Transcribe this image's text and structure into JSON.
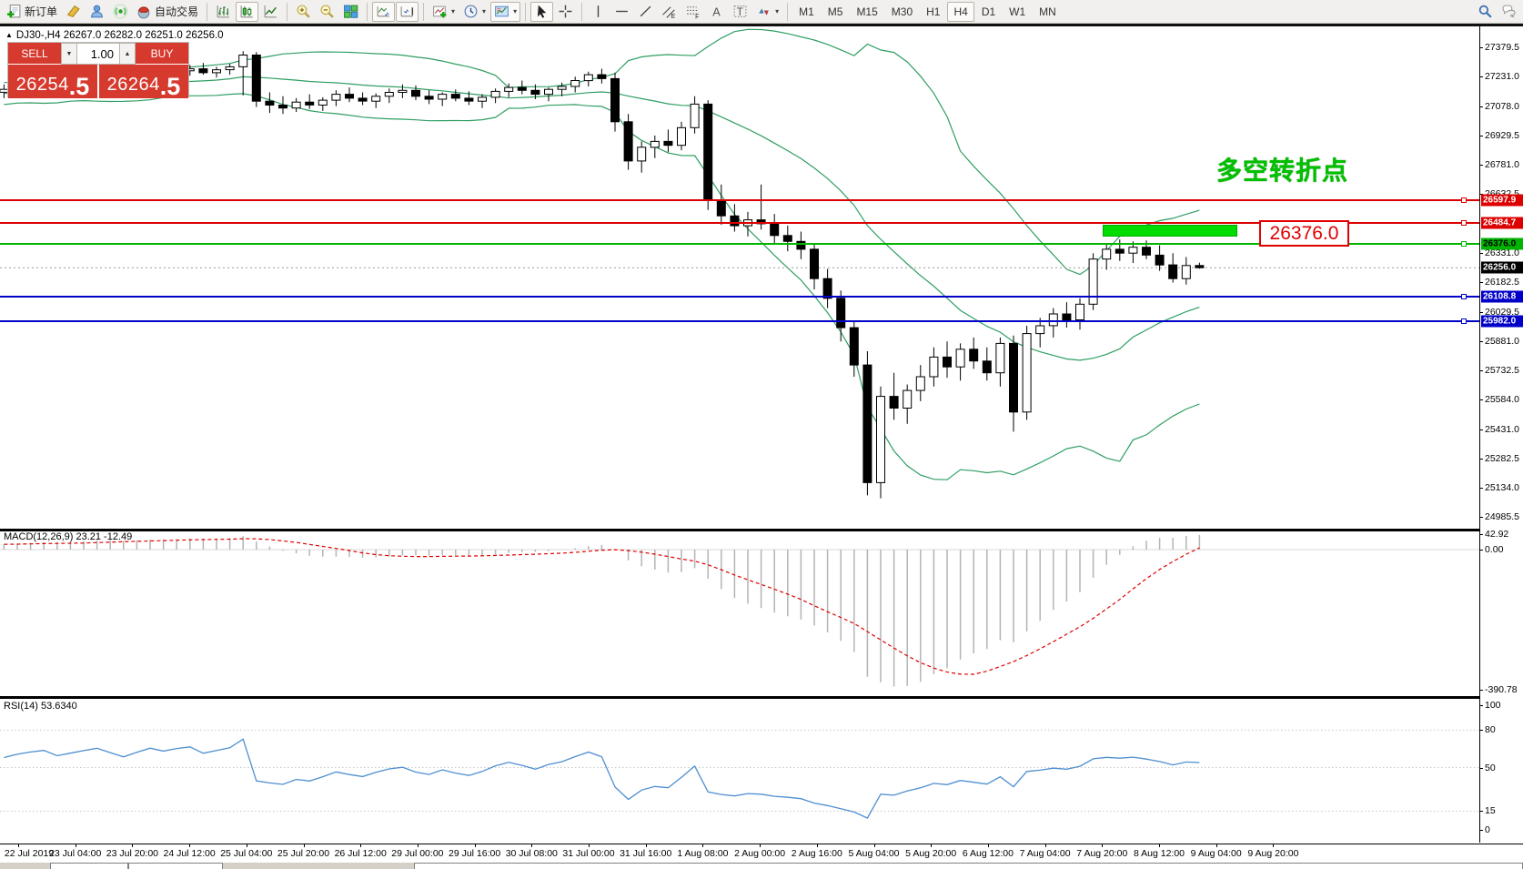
{
  "toolbar": {
    "new_order_label": "新订单",
    "autotrading_label": "自动交易",
    "timeframes": [
      "M1",
      "M5",
      "M15",
      "M30",
      "H1",
      "H4",
      "D1",
      "W1",
      "MN"
    ],
    "active_timeframe": "H4"
  },
  "symbol_bar": {
    "collapse": "▲",
    "text": "DJ30-,H4  26267.0 26282.0 26251.0 26256.0"
  },
  "trade_panel": {
    "sell_label": "SELL",
    "buy_label": "BUY",
    "volume": "1.00",
    "volume_down": "▼",
    "volume_up": "▲",
    "sell_price_main": "26254",
    "sell_price_frac": ".5",
    "buy_price_main": "26264",
    "buy_price_frac": ".5"
  },
  "annotations": {
    "turning_point_text": "多空转折点",
    "price_callout": "26376.0"
  },
  "hlines": [
    {
      "price": 26597.9,
      "label": "26597.9",
      "color": "#dd0000",
      "text_color": "#ffffff"
    },
    {
      "price": 26484.7,
      "label": "26484.7",
      "color": "#dd0000",
      "text_color": "#ffffff"
    },
    {
      "price": 26376.0,
      "label": "26376.0",
      "color": "#00b400",
      "text_color": "#000000"
    },
    {
      "price": 26108.8,
      "label": "26108.8",
      "color": "#0000c8",
      "text_color": "#ffffff"
    },
    {
      "price": 25982.0,
      "label": "25982.0",
      "color": "#0000c8",
      "text_color": "#ffffff"
    }
  ],
  "current_price": {
    "price": 26256.0,
    "label": "26256.0"
  },
  "price_axis_ticks": [
    {
      "price": 27379.5,
      "label": "27379.5"
    },
    {
      "price": 27231.0,
      "label": "27231.0"
    },
    {
      "price": 27078.0,
      "label": "27078.0"
    },
    {
      "price": 26929.5,
      "label": "26929.5"
    },
    {
      "price": 26781.0,
      "label": "26781.0"
    },
    {
      "price": 26632.5,
      "label": "26632.5"
    },
    {
      "price": 26331.0,
      "label": "26331.0"
    },
    {
      "price": 26182.5,
      "label": "26182.5"
    },
    {
      "price": 26029.5,
      "label": "26029.5"
    },
    {
      "price": 25881.0,
      "label": "25881.0"
    },
    {
      "price": 25732.5,
      "label": "25732.5"
    },
    {
      "price": 25584.0,
      "label": "25584.0"
    },
    {
      "price": 25431.0,
      "label": "25431.0"
    },
    {
      "price": 25282.5,
      "label": "25282.5"
    },
    {
      "price": 25134.0,
      "label": "25134.0"
    },
    {
      "price": 24985.5,
      "label": "24985.5"
    }
  ],
  "time_axis": {
    "labels": [
      "22 Jul 2019",
      "23 Jul 04:00",
      "23 Jul 20:00",
      "24 Jul 12:00",
      "25 Jul 04:00",
      "25 Jul 20:00",
      "26 Jul 12:00",
      "29 Jul 00:00",
      "29 Jul 16:00",
      "30 Jul 08:00",
      "31 Jul 00:00",
      "31 Jul 16:00",
      "1 Aug 08:00",
      "2 Aug 00:00",
      "2 Aug 16:00",
      "5 Aug 04:00",
      "5 Aug 20:00",
      "6 Aug 12:00",
      "7 Aug 04:00",
      "7 Aug 20:00",
      "8 Aug 12:00",
      "9 Aug 04:00",
      "9 Aug 20:00"
    ]
  },
  "macd": {
    "header": "MACD(12,26,9) 23.21 -12.49",
    "axis_labels": [
      {
        "value": 42.92,
        "label": "42.92"
      },
      {
        "value": 0,
        "label": "0.00"
      },
      {
        "value": -390.78,
        "label": "-390.78"
      }
    ]
  },
  "rsi": {
    "header": "RSI(14) 53.6340",
    "axis_labels": [
      {
        "value": 100,
        "label": "100"
      },
      {
        "value": 80,
        "label": "80"
      },
      {
        "value": 50,
        "label": "50"
      },
      {
        "value": 15,
        "label": "15"
      },
      {
        "value": 0,
        "label": "0"
      }
    ],
    "levels": [
      80,
      50,
      15
    ]
  },
  "chart_data": {
    "type": "candlestick",
    "symbol": "DJ30-",
    "timeframe": "H4",
    "visible_from_index": 20,
    "ohlc": [
      [
        27060,
        27110,
        27020,
        27090
      ],
      [
        27090,
        27140,
        27060,
        27120
      ],
      [
        27120,
        27170,
        27090,
        27150
      ],
      [
        27150,
        27190,
        27110,
        27130
      ],
      [
        27130,
        27160,
        27080,
        27100
      ],
      [
        27100,
        27140,
        27060,
        27125
      ],
      [
        27125,
        27175,
        27095,
        27160
      ],
      [
        27160,
        27210,
        27130,
        27190
      ],
      [
        27190,
        27230,
        27150,
        27170
      ],
      [
        27170,
        27200,
        27120,
        27140
      ],
      [
        27140,
        27180,
        27100,
        27120
      ],
      [
        27120,
        27160,
        27080,
        27110
      ],
      [
        27110,
        27150,
        27070,
        27130
      ],
      [
        27130,
        27180,
        27100,
        27160
      ],
      [
        27160,
        27210,
        27130,
        27195
      ],
      [
        27195,
        27230,
        27160,
        27180
      ],
      [
        27180,
        27210,
        27140,
        27155
      ],
      [
        27155,
        27190,
        27120,
        27135
      ],
      [
        27135,
        27170,
        27100,
        27150
      ],
      [
        27150,
        27190,
        27120,
        27165
      ],
      [
        27165,
        27205,
        27135,
        27185
      ],
      [
        27185,
        27215,
        27165,
        27200
      ],
      [
        27200,
        27230,
        27180,
        27210
      ],
      [
        27210,
        27225,
        27175,
        27190
      ],
      [
        27190,
        27220,
        27170,
        27205
      ],
      [
        27205,
        27235,
        27185,
        27220
      ],
      [
        27220,
        27250,
        27195,
        27235
      ],
      [
        27235,
        27260,
        27205,
        27220
      ],
      [
        27220,
        27245,
        27190,
        27205
      ],
      [
        27205,
        27240,
        27185,
        27230
      ],
      [
        27230,
        27270,
        27210,
        27255
      ],
      [
        27255,
        27285,
        27230,
        27245
      ],
      [
        27245,
        27275,
        27220,
        27260
      ],
      [
        27260,
        27290,
        27235,
        27270
      ],
      [
        27270,
        27300,
        27240,
        27250
      ],
      [
        27250,
        27280,
        27225,
        27265
      ],
      [
        27265,
        27295,
        27240,
        27280
      ],
      [
        27280,
        27360,
        27135,
        27340
      ],
      [
        27340,
        27355,
        27075,
        27105
      ],
      [
        27105,
        27150,
        27045,
        27085
      ],
      [
        27085,
        27130,
        27040,
        27070
      ],
      [
        27070,
        27120,
        27050,
        27100
      ],
      [
        27100,
        27140,
        27065,
        27085
      ],
      [
        27085,
        27125,
        27055,
        27110
      ],
      [
        27110,
        27160,
        27080,
        27140
      ],
      [
        27140,
        27175,
        27100,
        27120
      ],
      [
        27120,
        27150,
        27085,
        27105
      ],
      [
        27105,
        27145,
        27070,
        27130
      ],
      [
        27130,
        27170,
        27095,
        27150
      ],
      [
        27150,
        27190,
        27120,
        27160
      ],
      [
        27160,
        27185,
        27110,
        27130
      ],
      [
        27130,
        27160,
        27090,
        27115
      ],
      [
        27115,
        27150,
        27080,
        27140
      ],
      [
        27140,
        27165,
        27105,
        27120
      ],
      [
        27120,
        27155,
        27085,
        27105
      ],
      [
        27105,
        27140,
        27070,
        27125
      ],
      [
        27125,
        27170,
        27095,
        27155
      ],
      [
        27155,
        27195,
        27125,
        27175
      ],
      [
        27175,
        27210,
        27140,
        27160
      ],
      [
        27160,
        27190,
        27115,
        27140
      ],
      [
        27140,
        27175,
        27105,
        27165
      ],
      [
        27165,
        27200,
        27130,
        27180
      ],
      [
        27180,
        27230,
        27150,
        27210
      ],
      [
        27210,
        27255,
        27180,
        27240
      ],
      [
        27240,
        27270,
        27195,
        27220
      ],
      [
        27220,
        27250,
        26950,
        27000
      ],
      [
        27000,
        27040,
        26755,
        26800
      ],
      [
        26800,
        26900,
        26740,
        26870
      ],
      [
        26870,
        26930,
        26815,
        26900
      ],
      [
        26900,
        26960,
        26845,
        26880
      ],
      [
        26880,
        27000,
        26855,
        26970
      ],
      [
        26970,
        27130,
        26940,
        27090
      ],
      [
        27090,
        27110,
        26550,
        26600
      ],
      [
        26600,
        26680,
        26475,
        26520
      ],
      [
        26520,
        26580,
        26440,
        26470
      ],
      [
        26470,
        26540,
        26415,
        26500
      ],
      [
        26500,
        26680,
        26450,
        26480
      ],
      [
        26480,
        26530,
        26380,
        26420
      ],
      [
        26420,
        26470,
        26340,
        26390
      ],
      [
        26390,
        26440,
        26300,
        26350
      ],
      [
        26350,
        26380,
        26145,
        26200
      ],
      [
        26200,
        26250,
        26050,
        26100
      ],
      [
        26100,
        26140,
        25880,
        25950
      ],
      [
        25950,
        25980,
        25700,
        25760
      ],
      [
        25760,
        25830,
        25095,
        25160
      ],
      [
        25160,
        25650,
        25080,
        25600
      ],
      [
        25600,
        25720,
        25480,
        25540
      ],
      [
        25540,
        25660,
        25460,
        25630
      ],
      [
        25630,
        25760,
        25575,
        25700
      ],
      [
        25700,
        25850,
        25650,
        25800
      ],
      [
        25800,
        25880,
        25695,
        25750
      ],
      [
        25750,
        25870,
        25680,
        25840
      ],
      [
        25840,
        25900,
        25740,
        25780
      ],
      [
        25780,
        25850,
        25680,
        25720
      ],
      [
        25720,
        25900,
        25650,
        25870
      ],
      [
        25870,
        25910,
        25420,
        25520
      ],
      [
        25520,
        25960,
        25480,
        25920
      ],
      [
        25920,
        26000,
        25850,
        25960
      ],
      [
        25960,
        26050,
        25900,
        26020
      ],
      [
        26020,
        26080,
        25950,
        25990
      ],
      [
        25990,
        26100,
        25940,
        26070
      ],
      [
        26070,
        26330,
        26040,
        26300
      ],
      [
        26300,
        26380,
        26245,
        26350
      ],
      [
        26350,
        26400,
        26290,
        26330
      ],
      [
        26330,
        26390,
        26280,
        26360
      ],
      [
        26360,
        26395,
        26300,
        26320
      ],
      [
        26320,
        26370,
        26240,
        26270
      ],
      [
        26270,
        26330,
        26180,
        26200
      ],
      [
        26200,
        26310,
        26170,
        26267
      ],
      [
        26267,
        26282,
        26251,
        26256
      ]
    ],
    "indicators": {
      "bollinger": {
        "period": 20,
        "deviation": 2,
        "color": "#2f9e62"
      },
      "macd": {
        "fast": 12,
        "slow": 26,
        "signal": 9,
        "histogram_color": "#b4b4b4",
        "signal_color": "#e00000"
      },
      "rsi": {
        "period": 14,
        "color": "#4f8fd0"
      }
    },
    "y_axis_range": [
      24926,
      27490
    ],
    "macd_axis_range": [
      -408,
      55
    ],
    "rsi_axis_range": [
      0,
      100
    ]
  }
}
